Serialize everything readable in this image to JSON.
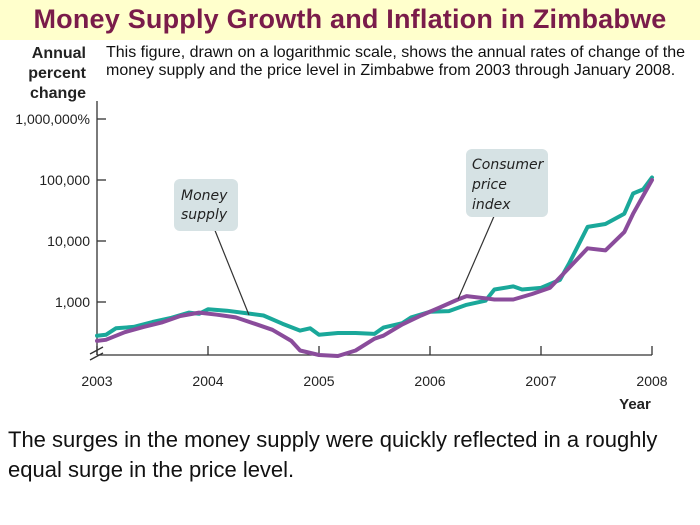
{
  "page": {
    "title": "Money Supply Growth and Inflation in Zimbabwe",
    "description": "This figure, drawn on a logarithmic scale, shows the annual rates of change of the money supply and the price level in Zimbabwe from 2003 through January 2008.",
    "caption": "The surges in the money supply were quickly reflected in a roughly equal surge in the price level."
  },
  "chart_data": {
    "type": "line",
    "yscale": "log",
    "ylabel": [
      "Annual",
      "percent",
      "change"
    ],
    "xlabel": "Year",
    "xlim": [
      2003,
      2008
    ],
    "ylim": [
      100,
      1000000
    ],
    "x_ticks": [
      "2003",
      "2004",
      "2005",
      "2006",
      "2007",
      "2008"
    ],
    "y_ticks": [
      {
        "value": 1000,
        "label": "1,000"
      },
      {
        "value": 10000,
        "label": "10,000"
      },
      {
        "value": 100000,
        "label": "100,000"
      },
      {
        "value": 1000000,
        "label": "1,000,000%"
      }
    ],
    "grid": false,
    "series": [
      {
        "name": "Money supply",
        "color": "#1aa89a",
        "label_lines": [
          "Money",
          "supply"
        ],
        "points": [
          [
            2003.0,
            280
          ],
          [
            2003.08,
            290
          ],
          [
            2003.17,
            370
          ],
          [
            2003.33,
            390
          ],
          [
            2003.5,
            470
          ],
          [
            2003.67,
            550
          ],
          [
            2003.83,
            670
          ],
          [
            2003.92,
            640
          ],
          [
            2004.0,
            760
          ],
          [
            2004.17,
            720
          ],
          [
            2004.33,
            660
          ],
          [
            2004.5,
            600
          ],
          [
            2004.67,
            440
          ],
          [
            2004.83,
            340
          ],
          [
            2004.92,
            370
          ],
          [
            2005.0,
            290
          ],
          [
            2005.17,
            310
          ],
          [
            2005.33,
            310
          ],
          [
            2005.5,
            300
          ],
          [
            2005.58,
            380
          ],
          [
            2005.75,
            450
          ],
          [
            2005.83,
            560
          ],
          [
            2006.0,
            690
          ],
          [
            2006.17,
            710
          ],
          [
            2006.33,
            900
          ],
          [
            2006.5,
            1050
          ],
          [
            2006.58,
            1600
          ],
          [
            2006.75,
            1800
          ],
          [
            2006.83,
            1600
          ],
          [
            2007.0,
            1700
          ],
          [
            2007.17,
            2300
          ],
          [
            2007.25,
            4200
          ],
          [
            2007.42,
            17000
          ],
          [
            2007.58,
            19000
          ],
          [
            2007.75,
            28000
          ],
          [
            2007.83,
            60000
          ],
          [
            2007.92,
            70000
          ],
          [
            2008.0,
            110000
          ]
        ]
      },
      {
        "name": "Consumer price index",
        "color": "#8a4c9b",
        "label_lines": [
          "Consumer",
          "price",
          "index"
        ],
        "points": [
          [
            2003.0,
            230
          ],
          [
            2003.08,
            240
          ],
          [
            2003.25,
            320
          ],
          [
            2003.42,
            390
          ],
          [
            2003.58,
            460
          ],
          [
            2003.75,
            590
          ],
          [
            2003.92,
            670
          ],
          [
            2004.08,
            620
          ],
          [
            2004.25,
            560
          ],
          [
            2004.42,
            440
          ],
          [
            2004.58,
            350
          ],
          [
            2004.75,
            230
          ],
          [
            2004.83,
            160
          ],
          [
            2005.0,
            135
          ],
          [
            2005.17,
            130
          ],
          [
            2005.33,
            160
          ],
          [
            2005.5,
            250
          ],
          [
            2005.58,
            280
          ],
          [
            2005.75,
            430
          ],
          [
            2005.92,
            600
          ],
          [
            2006.08,
            800
          ],
          [
            2006.25,
            1100
          ],
          [
            2006.33,
            1250
          ],
          [
            2006.5,
            1150
          ],
          [
            2006.58,
            1100
          ],
          [
            2006.75,
            1100
          ],
          [
            2006.92,
            1350
          ],
          [
            2007.08,
            1700
          ],
          [
            2007.25,
            3600
          ],
          [
            2007.42,
            7600
          ],
          [
            2007.58,
            7000
          ],
          [
            2007.75,
            14000
          ],
          [
            2007.83,
            28000
          ],
          [
            2008.0,
            100000
          ]
        ]
      }
    ]
  }
}
